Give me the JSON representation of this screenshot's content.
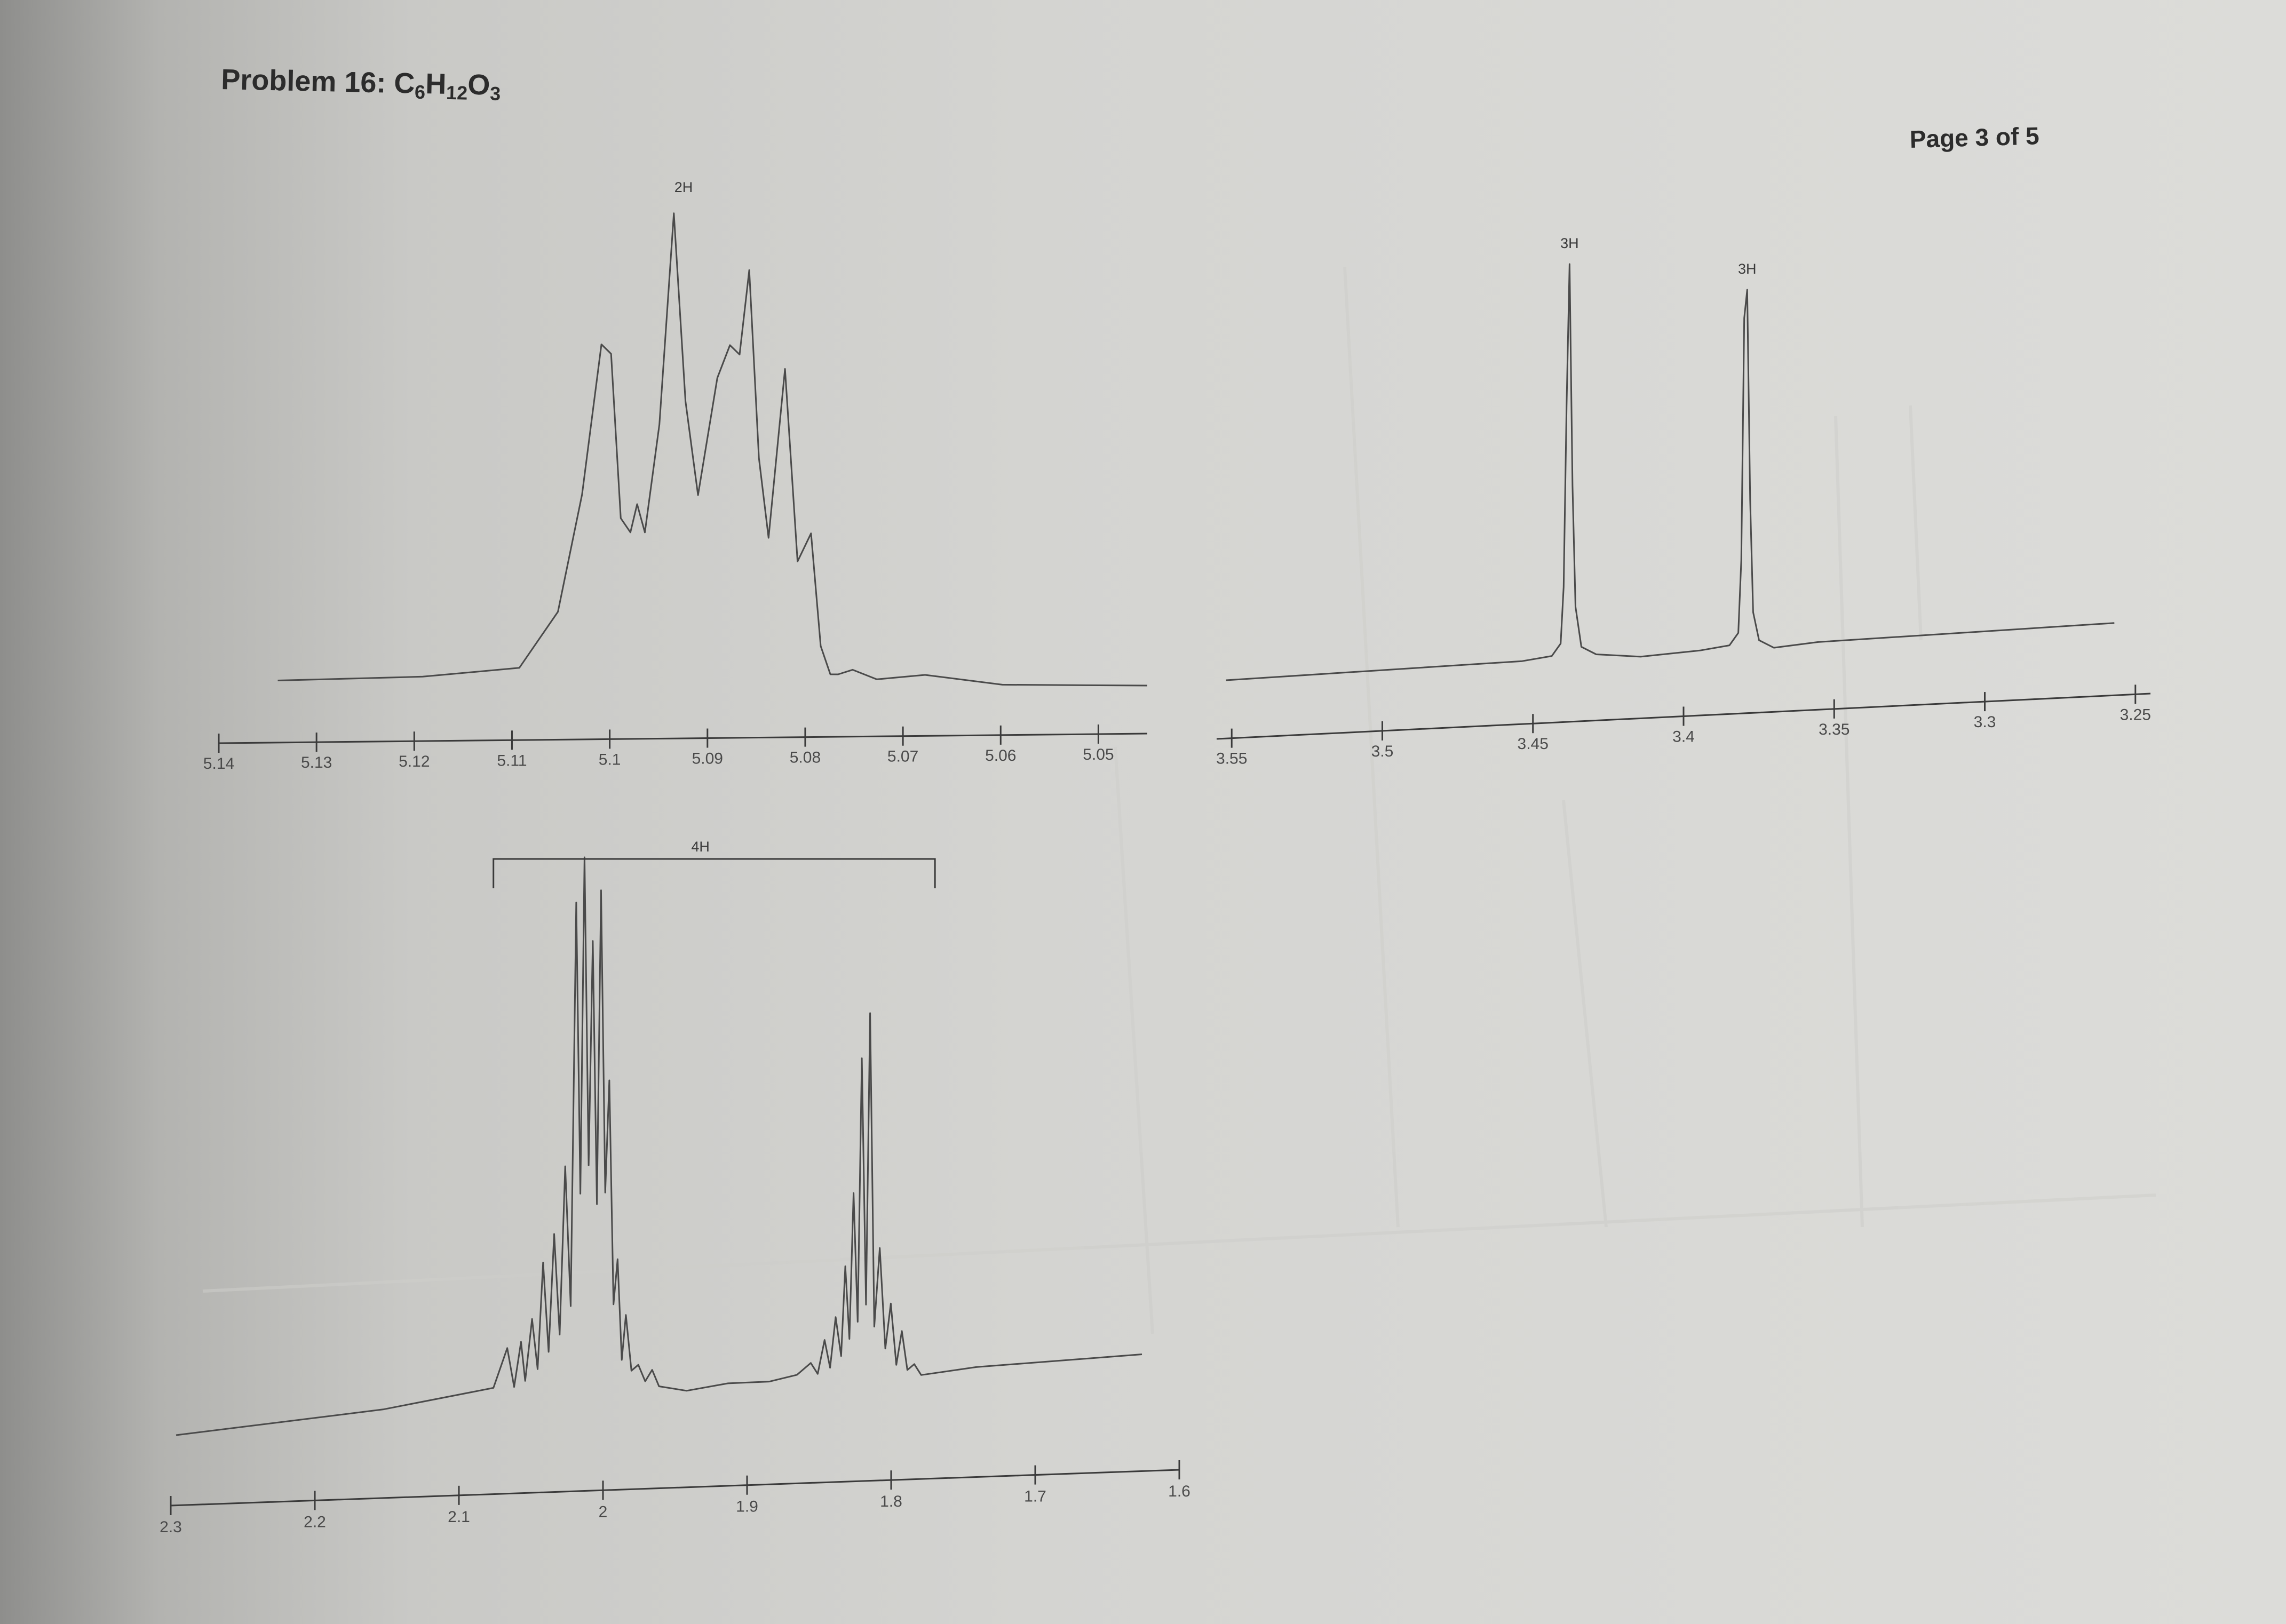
{
  "page": {
    "problem_title": "Problem 16: C",
    "formula_parts": [
      "6",
      "H",
      "12",
      "O",
      "3"
    ],
    "page_number": "Page 3 of 5"
  },
  "chart_data": [
    {
      "type": "line",
      "xlim": [
        5.14,
        5.045
      ],
      "ticks": [
        "5.14",
        "5.13",
        "5.12",
        "5.11",
        "5.1",
        "5.09",
        "5.08",
        "5.07",
        "5.06",
        "5.05"
      ],
      "tick_values": [
        5.14,
        5.13,
        5.12,
        5.11,
        5.1,
        5.09,
        5.08,
        5.07,
        5.06,
        5.05
      ],
      "integrations": [
        {
          "label": "2H",
          "x": 5.093
        }
      ],
      "x": [
        5.135,
        5.12,
        5.11,
        5.106,
        5.1035,
        5.1015,
        5.1005,
        5.0995,
        5.0985,
        5.0978,
        5.097,
        5.0955,
        5.094,
        5.0928,
        5.0915,
        5.0895,
        5.0882,
        5.0872,
        5.0862,
        5.0852,
        5.0842,
        5.0825,
        5.0812,
        5.0798,
        5.0788,
        5.0778,
        5.077,
        5.0755,
        5.073,
        5.068,
        5.06,
        5.05,
        5.045
      ],
      "y": [
        0.0,
        0.01,
        0.03,
        0.15,
        0.4,
        0.72,
        0.7,
        0.35,
        0.32,
        0.38,
        0.32,
        0.55,
        1.0,
        0.6,
        0.4,
        0.65,
        0.72,
        0.7,
        0.88,
        0.48,
        0.31,
        0.67,
        0.26,
        0.32,
        0.08,
        0.02,
        0.02,
        0.03,
        0.01,
        0.02,
        0.0,
        0.0,
        0.0
      ]
    },
    {
      "type": "line",
      "xlim": [
        3.555,
        3.245
      ],
      "ticks": [
        "3.55",
        "3.5",
        "3.45",
        "3.4",
        "3.35",
        "3.3",
        "3.25"
      ],
      "tick_values": [
        3.55,
        3.5,
        3.45,
        3.4,
        3.35,
        3.3,
        3.25
      ],
      "integrations": [
        {
          "label": "3H",
          "x": 3.434
        },
        {
          "label": "3H",
          "x": 3.374
        }
      ],
      "x": [
        3.55,
        3.5,
        3.45,
        3.44,
        3.437,
        3.436,
        3.435,
        3.434,
        3.433,
        3.432,
        3.43,
        3.425,
        3.41,
        3.39,
        3.38,
        3.377,
        3.376,
        3.375,
        3.374,
        3.373,
        3.372,
        3.37,
        3.365,
        3.35,
        3.3,
        3.25
      ],
      "y": [
        0.0,
        0.01,
        0.02,
        0.03,
        0.06,
        0.2,
        0.65,
        1.0,
        0.45,
        0.15,
        0.05,
        0.03,
        0.02,
        0.03,
        0.04,
        0.07,
        0.25,
        0.85,
        0.92,
        0.4,
        0.12,
        0.05,
        0.03,
        0.04,
        0.05,
        0.06
      ]
    },
    {
      "type": "line",
      "xlim": [
        2.3,
        1.6
      ],
      "ticks": [
        "2.3",
        "2.2",
        "2.1",
        "2",
        "1.9",
        "1.8",
        "1.7",
        "1.6"
      ],
      "tick_values": [
        2.3,
        2.2,
        2.1,
        2.0,
        1.9,
        1.8,
        1.7,
        1.6
      ],
      "integrations": [
        {
          "label": "4H",
          "x": 1.92,
          "range": [
            2.07,
            1.75
          ]
        }
      ],
      "x": [
        2.3,
        2.15,
        2.07,
        2.06,
        2.055,
        2.05,
        2.047,
        2.042,
        2.038,
        2.034,
        2.03,
        2.026,
        2.022,
        2.018,
        2.014,
        2.01,
        2.007,
        2.004,
        2.001,
        1.998,
        1.995,
        1.992,
        1.989,
        1.986,
        1.983,
        1.98,
        1.977,
        1.974,
        1.97,
        1.965,
        1.96,
        1.955,
        1.95,
        1.93,
        1.9,
        1.87,
        1.85,
        1.84,
        1.835,
        1.83,
        1.826,
        1.822,
        1.818,
        1.815,
        1.812,
        1.809,
        1.806,
        1.803,
        1.8,
        1.797,
        1.794,
        1.79,
        1.786,
        1.782,
        1.778,
        1.774,
        1.77,
        1.765,
        1.76,
        1.72,
        1.6
      ],
      "y": [
        0.0,
        0.03,
        0.06,
        0.13,
        0.06,
        0.14,
        0.07,
        0.18,
        0.09,
        0.28,
        0.12,
        0.33,
        0.15,
        0.45,
        0.2,
        0.92,
        0.4,
        1.0,
        0.45,
        0.85,
        0.38,
        0.94,
        0.4,
        0.6,
        0.2,
        0.28,
        0.1,
        0.18,
        0.08,
        0.09,
        0.06,
        0.08,
        0.05,
        0.04,
        0.05,
        0.05,
        0.06,
        0.08,
        0.06,
        0.12,
        0.07,
        0.16,
        0.09,
        0.25,
        0.12,
        0.38,
        0.15,
        0.62,
        0.18,
        0.7,
        0.14,
        0.28,
        0.1,
        0.18,
        0.07,
        0.13,
        0.06,
        0.07,
        0.05,
        0.06,
        0.07
      ]
    }
  ]
}
